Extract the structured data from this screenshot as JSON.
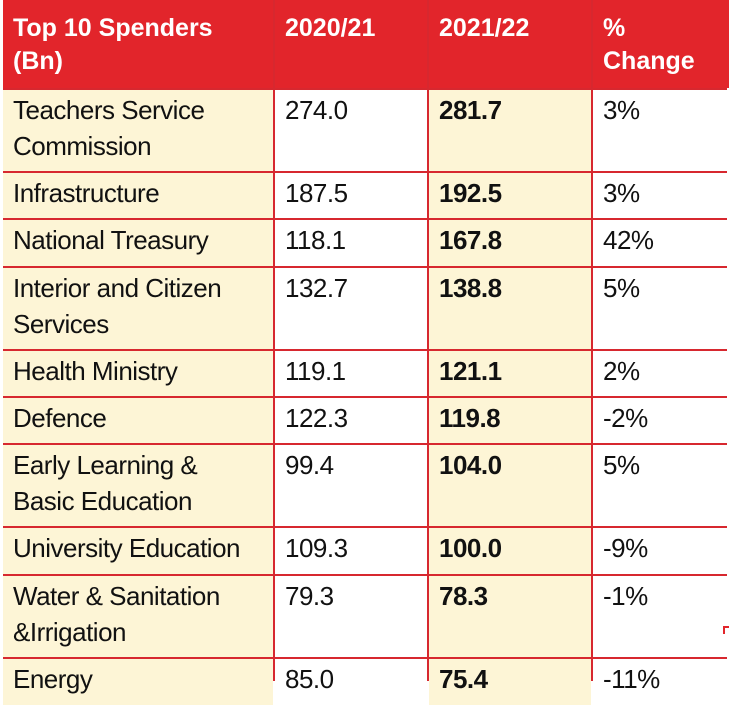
{
  "chart_data": {
    "type": "table",
    "columns": [
      "Top 10 Spenders (Bn)",
      "2020/21",
      "2021/22",
      "% Change"
    ],
    "rows": [
      {
        "name": "Teachers Service Commission",
        "v2020_21": "274.0",
        "v2021_22": "281.7",
        "change": "3%"
      },
      {
        "name": "Infrastructure",
        "v2020_21": "187.5",
        "v2021_22": "192.5",
        "change": "3%"
      },
      {
        "name": "National Treasury",
        "v2020_21": "118.1",
        "v2021_22": "167.8",
        "change": "42%"
      },
      {
        "name": "Interior and Citizen Services",
        "v2020_21": "132.7",
        "v2021_22": "138.8",
        "change": "5%"
      },
      {
        "name": "Health Ministry",
        "v2020_21": "119.1",
        "v2021_22": "121.1",
        "change": "2%"
      },
      {
        "name": "Defence",
        "v2020_21": "122.3",
        "v2021_22": "119.8",
        "change": "-2%"
      },
      {
        "name": "Early Learning & Basic Education",
        "v2020_21": "99.4",
        "v2021_22": "104.0",
        "change": "5%"
      },
      {
        "name": "University Education",
        "v2020_21": "109.3",
        "v2021_22": "100.0",
        "change": "-9%"
      },
      {
        "name": "Water & Sanitation &Irrigation",
        "v2020_21": "79.3",
        "v2021_22": "78.3",
        "change": "-1%"
      },
      {
        "name": "Energy",
        "v2020_21": "85.0",
        "v2021_22": "75.4",
        "change": "-11%"
      }
    ]
  },
  "colors": {
    "header_bg": "#e2252b",
    "grid_line": "#d7282f",
    "highlight_bg": "#fdf5d6"
  }
}
